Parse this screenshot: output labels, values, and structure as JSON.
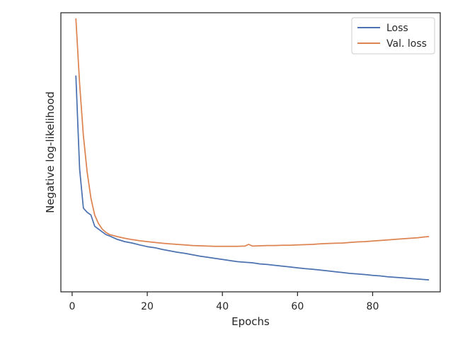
{
  "chart_data": {
    "type": "line",
    "title": "",
    "xlabel": "Epochs",
    "ylabel": "Negative log-likelihood",
    "xlim": [
      -3,
      98
    ],
    "ylim": [
      0,
      1
    ],
    "x_ticks": [
      0,
      20,
      40,
      60,
      80
    ],
    "y_ticks_shown": false,
    "grid": false,
    "legend_position": "top-right",
    "series": [
      {
        "name": "Loss",
        "color": "#4c72b0",
        "x": [
          1,
          2,
          3,
          4,
          5,
          6,
          7,
          8,
          9,
          10,
          12,
          14,
          16,
          18,
          20,
          22,
          24,
          26,
          28,
          30,
          32,
          34,
          36,
          38,
          40,
          42,
          44,
          46,
          48,
          50,
          52,
          54,
          56,
          58,
          60,
          62,
          64,
          66,
          68,
          70,
          72,
          74,
          76,
          78,
          80,
          82,
          84,
          86,
          88,
          90,
          92,
          94,
          95
        ],
        "values": [
          0.775,
          0.44,
          0.3,
          0.285,
          0.275,
          0.235,
          0.225,
          0.215,
          0.205,
          0.2,
          0.188,
          0.18,
          0.175,
          0.168,
          0.162,
          0.158,
          0.152,
          0.147,
          0.142,
          0.138,
          0.133,
          0.128,
          0.124,
          0.12,
          0.116,
          0.112,
          0.108,
          0.106,
          0.104,
          0.1,
          0.098,
          0.095,
          0.092,
          0.089,
          0.086,
          0.083,
          0.081,
          0.078,
          0.075,
          0.072,
          0.069,
          0.066,
          0.064,
          0.062,
          0.059,
          0.057,
          0.054,
          0.052,
          0.05,
          0.048,
          0.046,
          0.044,
          0.043
        ]
      },
      {
        "name": "Val. loss",
        "color": "#dd8452",
        "x": [
          1,
          2,
          3,
          4,
          5,
          6,
          7,
          8,
          9,
          10,
          12,
          14,
          16,
          18,
          20,
          22,
          24,
          26,
          28,
          30,
          32,
          34,
          36,
          38,
          40,
          42,
          44,
          46,
          47,
          48,
          50,
          52,
          54,
          56,
          58,
          60,
          62,
          64,
          66,
          68,
          70,
          72,
          74,
          76,
          78,
          80,
          82,
          84,
          86,
          88,
          90,
          92,
          94,
          95
        ],
        "values": [
          0.98,
          0.745,
          0.56,
          0.43,
          0.335,
          0.275,
          0.245,
          0.225,
          0.213,
          0.205,
          0.198,
          0.192,
          0.187,
          0.183,
          0.18,
          0.177,
          0.174,
          0.172,
          0.17,
          0.168,
          0.166,
          0.165,
          0.164,
          0.163,
          0.163,
          0.163,
          0.163,
          0.164,
          0.17,
          0.164,
          0.165,
          0.166,
          0.166,
          0.167,
          0.167,
          0.168,
          0.169,
          0.17,
          0.172,
          0.173,
          0.174,
          0.175,
          0.177,
          0.179,
          0.18,
          0.182,
          0.184,
          0.186,
          0.188,
          0.19,
          0.192,
          0.194,
          0.197,
          0.198
        ]
      }
    ]
  }
}
